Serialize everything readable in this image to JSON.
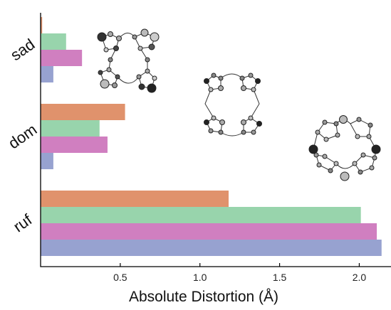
{
  "chart_data": {
    "type": "bar",
    "orientation": "horizontal",
    "categories": [
      "sad",
      "dom",
      "ruf"
    ],
    "series": [
      {
        "color": "#E0926C",
        "values": [
          0.01,
          0.53,
          1.18
        ]
      },
      {
        "color": "#98D4AC",
        "values": [
          0.16,
          0.37,
          2.01
        ]
      },
      {
        "color": "#D07FC0",
        "values": [
          0.26,
          0.42,
          2.11
        ]
      },
      {
        "color": "#97A2D0",
        "values": [
          0.08,
          0.08,
          2.14
        ]
      }
    ],
    "xlabel": "Absolute Distortion (Å)",
    "ylabel": "",
    "xlim": [
      0,
      2.15
    ],
    "xticks": [
      "0.5",
      "1.0",
      "1.5",
      "2.0"
    ],
    "grid": false,
    "insets": [
      "saddled porphyrin skeleton",
      "domed porphyrin skeleton",
      "ruffled porphyrin skeleton"
    ]
  }
}
